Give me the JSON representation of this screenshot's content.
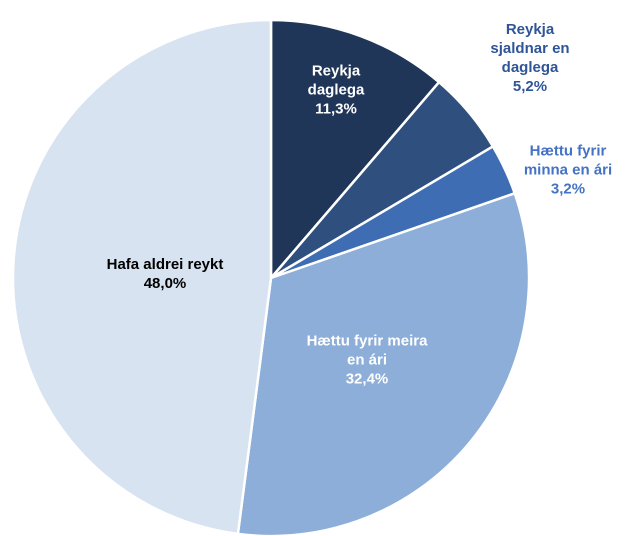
{
  "chart_data": {
    "type": "pie",
    "categories": [
      "Reykja daglega",
      "Reykja sjaldnar en daglega",
      "Hættu fyrir minna en ári",
      "Hættu fyrir meira en ári",
      "Hafa aldrei reykt"
    ],
    "values": [
      11.3,
      5.2,
      3.2,
      32.4,
      48.0
    ],
    "value_labels": [
      "11,3%",
      "5,2%",
      "3,2%",
      "32,4%",
      "48,0%"
    ],
    "colors": [
      "#203658",
      "#2f4f7e",
      "#3f6db3",
      "#8caed8",
      "#d7e3f0"
    ]
  }
}
